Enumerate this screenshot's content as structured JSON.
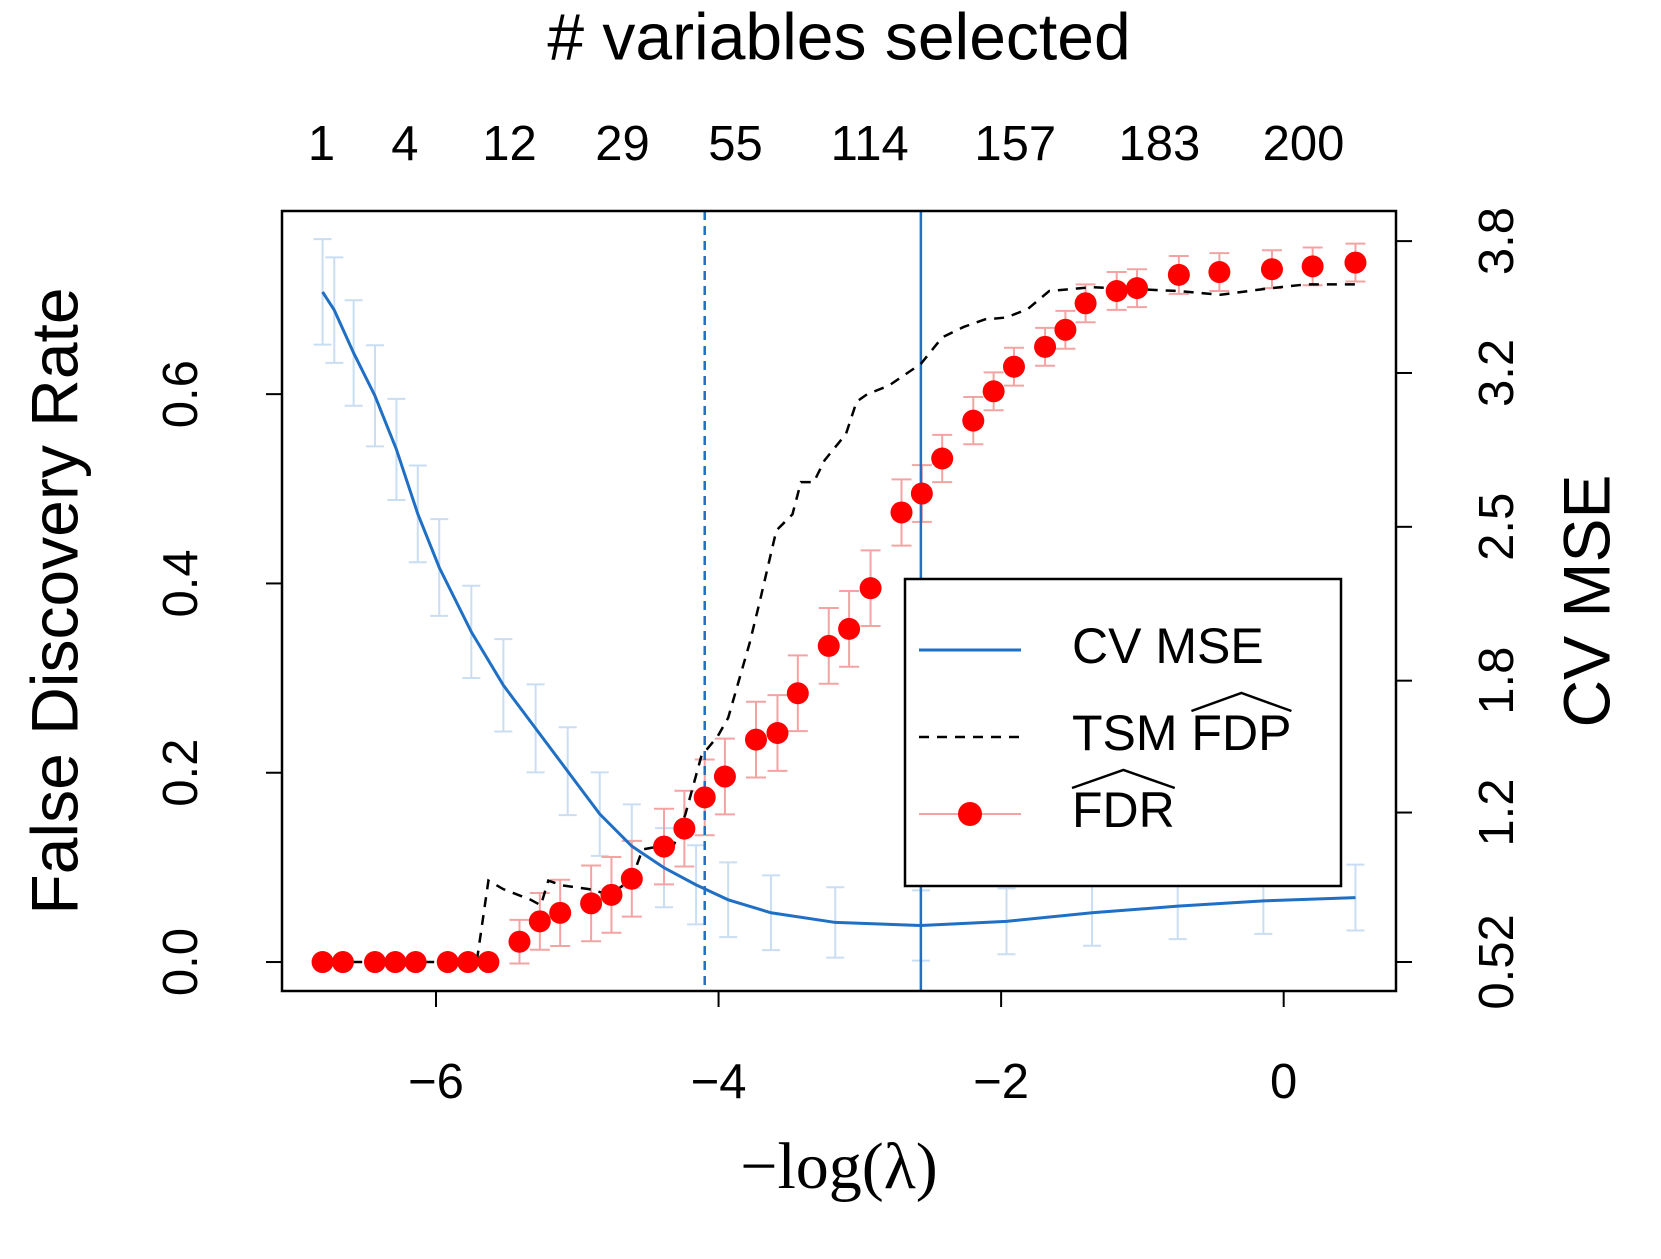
{
  "chart_data": {
    "type": "line",
    "x2label": "# variables selected",
    "xlabel": "−log(λ)",
    "ylabel": "False Discovery Rate",
    "y2label": "CV MSE",
    "xlim": [
      -7.09,
      0.795
    ],
    "ylim": [
      -0.0306,
      0.7935
    ],
    "y2lim": [
      0.388,
      3.937
    ],
    "xticks": [
      {
        "value": -6,
        "label": "−6"
      },
      {
        "value": -4,
        "label": "−4"
      },
      {
        "value": -2,
        "label": "−2"
      },
      {
        "value": 0,
        "label": "0"
      }
    ],
    "yticks": [
      {
        "value": 0,
        "label": "0.0"
      },
      0.2,
      0.4,
      0.6
    ],
    "y2ticks": [
      0.52,
      1.2,
      1.8,
      2.5,
      3.2,
      3.8
    ],
    "x2ticks": [
      {
        "value": -6.81,
        "label": "1"
      },
      {
        "value": -6.22,
        "label": "4"
      },
      {
        "value": -5.48,
        "label": "12"
      },
      {
        "value": -4.68,
        "label": "29"
      },
      {
        "value": -3.88,
        "label": "55"
      },
      {
        "value": -2.93,
        "label": "114"
      },
      {
        "value": -1.9,
        "label": "157"
      },
      {
        "value": -0.88,
        "label": "183"
      },
      {
        "value": 0.14,
        "label": "200"
      }
    ],
    "vlines": [
      {
        "value": -4.098,
        "color": "#1f6fc4",
        "dashed": true
      },
      {
        "value": -2.568,
        "color": "#1f6fc4",
        "dashed": false
      }
    ],
    "legend": "right",
    "series": [
      {
        "name": "CV MSE",
        "color": "#1f6fc4",
        "axis": "y2",
        "mode": "line",
        "dashed": false,
        "error_color": "#c9ddf3",
        "x": [
          -6.803,
          -6.72,
          -6.583,
          -6.432,
          -6.28,
          -6.129,
          -5.977,
          -5.75,
          -5.523,
          -5.295,
          -5.068,
          -4.841,
          -4.614,
          -4.386,
          -4.159,
          -3.932,
          -3.629,
          -3.174,
          -2.568,
          -1.962,
          -1.356,
          -0.75,
          -0.144,
          0.508
        ],
        "values": [
          3.569,
          3.486,
          3.291,
          3.096,
          2.852,
          2.559,
          2.315,
          2.022,
          1.779,
          1.583,
          1.388,
          1.193,
          1.047,
          0.949,
          0.871,
          0.803,
          0.744,
          0.7,
          0.686,
          0.705,
          0.744,
          0.774,
          0.798,
          0.813
        ],
        "errors": [
          0.24,
          0.24,
          0.24,
          0.23,
          0.23,
          0.22,
          0.22,
          0.21,
          0.21,
          0.2,
          0.2,
          0.19,
          0.19,
          0.18,
          0.18,
          0.17,
          0.17,
          0.16,
          0.16,
          0.15,
          0.15,
          0.15,
          0.15,
          0.15
        ]
      },
      {
        "name": "TSM FDP",
        "color": "#000000",
        "mode": "line",
        "dashed": true,
        "x": [
          -6.848,
          -5.712,
          -5.629,
          -5.523,
          -5.333,
          -5.258,
          -5.205,
          -5.106,
          -4.917,
          -4.765,
          -4.614,
          -4.538,
          -4.424,
          -4.348,
          -4.235,
          -4.121,
          -4.008,
          -3.932,
          -3.78,
          -3.705,
          -3.591,
          -3.477,
          -3.417,
          -3.326,
          -3.25,
          -3.098,
          -3.023,
          -2.947,
          -2.795,
          -2.568,
          -2.417,
          -2.265,
          -2.114,
          -1.962,
          -1.811,
          -1.659,
          -1.508,
          -1.356,
          -1.053,
          -0.75,
          -0.447,
          -0.144,
          0.159,
          0.508
        ],
        "values": [
          0,
          0,
          0.086,
          0.077,
          0.066,
          0.06,
          0.086,
          0.081,
          0.077,
          0.071,
          0.088,
          0.119,
          0.122,
          0.111,
          0.156,
          0.218,
          0.238,
          0.258,
          0.337,
          0.383,
          0.456,
          0.473,
          0.507,
          0.507,
          0.53,
          0.558,
          0.592,
          0.6,
          0.609,
          0.632,
          0.66,
          0.671,
          0.679,
          0.681,
          0.69,
          0.709,
          0.711,
          0.713,
          0.711,
          0.709,
          0.705,
          0.711,
          0.716,
          0.716
        ]
      },
      {
        "name": "FDR",
        "color": "#ff0000",
        "mode": "points",
        "error_color": "#f4a3a3",
        "x": [
          -6.803,
          -6.659,
          -6.432,
          -6.288,
          -6.144,
          -5.917,
          -5.773,
          -5.629,
          -5.409,
          -5.265,
          -5.121,
          -4.902,
          -4.758,
          -4.614,
          -4.386,
          -4.242,
          -4.098,
          -3.955,
          -3.735,
          -3.583,
          -3.439,
          -3.22,
          -3.076,
          -2.924,
          -2.705,
          -2.561,
          -2.417,
          -2.197,
          -2.053,
          -1.909,
          -1.689,
          -1.545,
          -1.402,
          -1.182,
          -1.038,
          -0.742,
          -0.455,
          -0.083,
          0.205,
          0.508
        ],
        "values": [
          0,
          0,
          0,
          0,
          0,
          0,
          0,
          0,
          0.0215,
          0.043,
          0.052,
          0.062,
          0.071,
          0.088,
          0.122,
          0.141,
          0.174,
          0.196,
          0.235,
          0.242,
          0.284,
          0.334,
          0.352,
          0.395,
          0.475,
          0.495,
          0.532,
          0.572,
          0.603,
          0.629,
          0.65,
          0.668,
          0.696,
          0.709,
          0.712,
          0.726,
          0.729,
          0.732,
          0.735,
          0.739
        ],
        "errors": [
          0,
          0,
          0,
          0,
          0,
          0,
          0,
          0,
          0.023,
          0.03,
          0.035,
          0.04,
          0.04,
          0.04,
          0.04,
          0.04,
          0.04,
          0.04,
          0.04,
          0.04,
          0.04,
          0.04,
          0.04,
          0.04,
          0.035,
          0.03,
          0.025,
          0.025,
          0.02,
          0.02,
          0.02,
          0.02,
          0.02,
          0.02,
          0.02,
          0.02,
          0.02,
          0.02,
          0.02,
          0.02
        ]
      }
    ]
  }
}
